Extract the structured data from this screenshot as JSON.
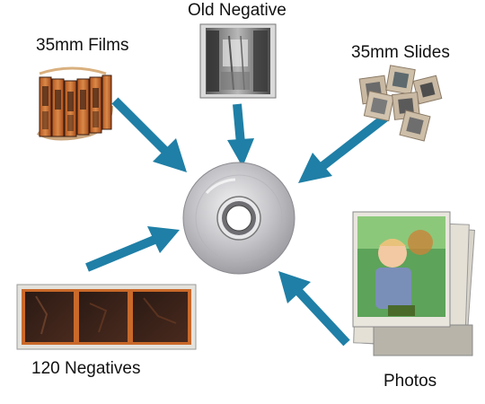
{
  "labels": {
    "films": "35mm Films",
    "old_negative": "Old Negative",
    "slides": "35mm Slides",
    "negatives_120": "120 Negatives",
    "photos": "Photos"
  },
  "colors": {
    "arrow": "#1F7FA6",
    "film_orange": "#C9692A",
    "film_dark": "#3A1E12",
    "negative_strip": "#2A1A14",
    "disc_silver": "#C8C8CC",
    "slide_mount": "#C9B9A3",
    "photo_frame": "#E9E6DE",
    "photo_bg": "#5DA35A"
  },
  "icons": {
    "center": "cd-disc-icon",
    "films": "film-rolls-icon",
    "old_negative": "old-negative-photo-icon",
    "slides": "slides-icon",
    "negatives_120": "negative-strip-icon",
    "photos": "photo-stack-icon"
  }
}
